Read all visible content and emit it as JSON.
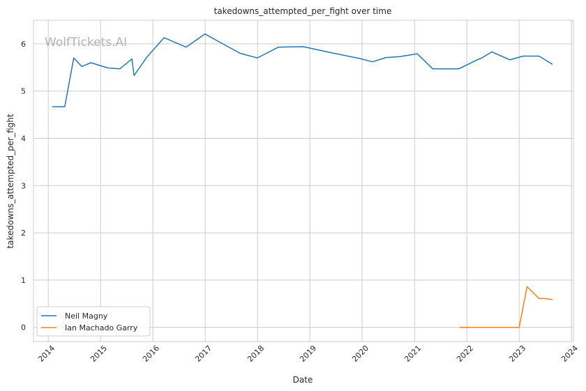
{
  "chart_data": {
    "type": "line",
    "title": "takedowns_attempted_per_fight over time",
    "xlabel": "Date",
    "ylabel": "takedowns_attempted_per_fight",
    "watermark": "WolfTickets.AI",
    "xlim": [
      "2013-09-20",
      "2024-01-15"
    ],
    "ylim": [
      -0.3,
      6.5
    ],
    "x_ticks": [
      "2014",
      "2015",
      "2016",
      "2017",
      "2018",
      "2019",
      "2020",
      "2021",
      "2022",
      "2023",
      "2024"
    ],
    "y_ticks": [
      0,
      1,
      2,
      3,
      4,
      5,
      6
    ],
    "grid": true,
    "legend_position": "lower-left",
    "series": [
      {
        "name": "Neil Magny",
        "color": "#1f77b4",
        "points": [
          [
            "2014-02-01",
            4.67
          ],
          [
            "2014-04-26",
            4.67
          ],
          [
            "2014-06-28",
            5.7
          ],
          [
            "2014-08-23",
            5.52
          ],
          [
            "2014-10-25",
            5.6
          ],
          [
            "2015-02-22",
            5.49
          ],
          [
            "2015-05-16",
            5.47
          ],
          [
            "2015-08-08",
            5.68
          ],
          [
            "2015-08-23",
            5.33
          ],
          [
            "2015-11-21",
            5.72
          ],
          [
            "2016-03-19",
            6.13
          ],
          [
            "2016-08-20",
            5.93
          ],
          [
            "2016-12-30",
            6.21
          ],
          [
            "2017-04-15",
            6.03
          ],
          [
            "2017-09-02",
            5.8
          ],
          [
            "2017-12-30",
            5.7
          ],
          [
            "2018-05-27",
            5.93
          ],
          [
            "2018-11-17",
            5.94
          ],
          [
            "2019-05-18",
            5.82
          ],
          [
            "2019-12-14",
            5.69
          ],
          [
            "2020-03-14",
            5.62
          ],
          [
            "2020-06-13",
            5.71
          ],
          [
            "2020-09-19",
            5.73
          ],
          [
            "2021-01-20",
            5.79
          ],
          [
            "2021-05-08",
            5.47
          ],
          [
            "2021-11-06",
            5.47
          ],
          [
            "2022-03-19",
            5.67
          ],
          [
            "2022-04-09",
            5.69
          ],
          [
            "2022-06-25",
            5.83
          ],
          [
            "2022-10-29",
            5.66
          ],
          [
            "2023-01-28",
            5.74
          ],
          [
            "2023-05-20",
            5.74
          ],
          [
            "2023-08-19",
            5.57
          ]
        ]
      },
      {
        "name": "Ian Machado Garry",
        "color": "#ff7f0e",
        "points": [
          [
            "2021-11-13",
            0.0
          ],
          [
            "2022-03-19",
            0.0
          ],
          [
            "2022-07-23",
            0.0
          ],
          [
            "2022-11-12",
            0.0
          ],
          [
            "2023-01-01",
            0.0
          ],
          [
            "2023-02-25",
            0.86
          ],
          [
            "2023-05-20",
            0.61
          ],
          [
            "2023-06-24",
            0.61
          ],
          [
            "2023-08-19",
            0.59
          ]
        ]
      }
    ]
  }
}
